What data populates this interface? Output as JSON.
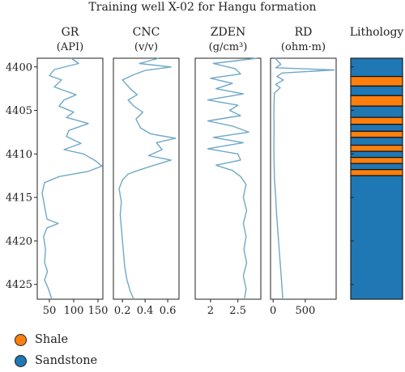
{
  "chart_data": {
    "type": "well-log",
    "title": "Training well X-02 for Hangu formation",
    "depth_axis": {
      "range": [
        4399.0,
        4426.7
      ],
      "ticks": [
        4400,
        4405,
        4410,
        4415,
        4420,
        4425
      ]
    },
    "tracks": [
      {
        "name": "GR",
        "unit": "(API)",
        "xlim": [
          25,
          160
        ],
        "ticks": [
          50,
          100,
          150
        ],
        "series": [
          {
            "depth": 4399.0,
            "value": 95
          },
          {
            "depth": 4399.6,
            "value": 110
          },
          {
            "depth": 4400.3,
            "value": 60
          },
          {
            "depth": 4401.0,
            "value": 50
          },
          {
            "depth": 4401.5,
            "value": 75
          },
          {
            "depth": 4402.3,
            "value": 60
          },
          {
            "depth": 4403.2,
            "value": 105
          },
          {
            "depth": 4403.8,
            "value": 80
          },
          {
            "depth": 4404.5,
            "value": 70
          },
          {
            "depth": 4405.2,
            "value": 100
          },
          {
            "depth": 4405.8,
            "value": 85
          },
          {
            "depth": 4406.5,
            "value": 130
          },
          {
            "depth": 4407.3,
            "value": 90
          },
          {
            "depth": 4408.0,
            "value": 85
          },
          {
            "depth": 4408.8,
            "value": 115
          },
          {
            "depth": 4409.5,
            "value": 80
          },
          {
            "depth": 4410.0,
            "value": 120
          },
          {
            "depth": 4410.8,
            "value": 145
          },
          {
            "depth": 4411.4,
            "value": 158
          },
          {
            "depth": 4412.0,
            "value": 130
          },
          {
            "depth": 4412.6,
            "value": 70
          },
          {
            "depth": 4413.3,
            "value": 40
          },
          {
            "depth": 4414.5,
            "value": 35
          },
          {
            "depth": 4416.0,
            "value": 40
          },
          {
            "depth": 4417.5,
            "value": 45
          },
          {
            "depth": 4418.0,
            "value": 68
          },
          {
            "depth": 4418.5,
            "value": 45
          },
          {
            "depth": 4419.5,
            "value": 38
          },
          {
            "depth": 4421.0,
            "value": 42
          },
          {
            "depth": 4422.5,
            "value": 40
          },
          {
            "depth": 4423.5,
            "value": 46
          },
          {
            "depth": 4424.5,
            "value": 40
          },
          {
            "depth": 4425.5,
            "value": 48
          },
          {
            "depth": 4426.7,
            "value": 55
          }
        ]
      },
      {
        "name": "CNC",
        "unit": "(v/v)",
        "xlim": [
          0.12,
          0.7
        ],
        "ticks": [
          0.2,
          0.4,
          0.6
        ],
        "series": [
          {
            "depth": 4399.0,
            "value": 0.52
          },
          {
            "depth": 4399.6,
            "value": 0.35
          },
          {
            "depth": 4400.0,
            "value": 0.63
          },
          {
            "depth": 4400.4,
            "value": 0.4
          },
          {
            "depth": 4400.9,
            "value": 0.3
          },
          {
            "depth": 4401.5,
            "value": 0.2
          },
          {
            "depth": 4402.5,
            "value": 0.27
          },
          {
            "depth": 4403.2,
            "value": 0.33
          },
          {
            "depth": 4403.8,
            "value": 0.25
          },
          {
            "depth": 4404.5,
            "value": 0.3
          },
          {
            "depth": 4405.2,
            "value": 0.38
          },
          {
            "depth": 4406.0,
            "value": 0.32
          },
          {
            "depth": 4407.0,
            "value": 0.36
          },
          {
            "depth": 4407.7,
            "value": 0.45
          },
          {
            "depth": 4408.2,
            "value": 0.67
          },
          {
            "depth": 4408.7,
            "value": 0.5
          },
          {
            "depth": 4409.5,
            "value": 0.55
          },
          {
            "depth": 4410.2,
            "value": 0.43
          },
          {
            "depth": 4410.7,
            "value": 0.63
          },
          {
            "depth": 4411.3,
            "value": 0.48
          },
          {
            "depth": 4411.8,
            "value": 0.36
          },
          {
            "depth": 4412.3,
            "value": 0.25
          },
          {
            "depth": 4413.0,
            "value": 0.2
          },
          {
            "depth": 4414.0,
            "value": 0.17
          },
          {
            "depth": 4415.5,
            "value": 0.19
          },
          {
            "depth": 4417.0,
            "value": 0.18
          },
          {
            "depth": 4418.5,
            "value": 0.19
          },
          {
            "depth": 4420.0,
            "value": 0.2
          },
          {
            "depth": 4421.5,
            "value": 0.21
          },
          {
            "depth": 4423.0,
            "value": 0.22
          },
          {
            "depth": 4424.5,
            "value": 0.24
          },
          {
            "depth": 4425.8,
            "value": 0.27
          },
          {
            "depth": 4426.7,
            "value": 0.3
          }
        ]
      },
      {
        "name": "ZDEN",
        "unit": "(g/cm³)",
        "xlim": [
          1.72,
          2.92
        ],
        "ticks": [
          2.0,
          2.5
        ],
        "series": [
          {
            "depth": 4399.0,
            "value": 2.85
          },
          {
            "depth": 4399.6,
            "value": 2.05
          },
          {
            "depth": 4400.2,
            "value": 2.45
          },
          {
            "depth": 4400.8,
            "value": 2.55
          },
          {
            "depth": 4401.3,
            "value": 2.0
          },
          {
            "depth": 4401.9,
            "value": 2.4
          },
          {
            "depth": 4402.5,
            "value": 2.1
          },
          {
            "depth": 4403.1,
            "value": 2.6
          },
          {
            "depth": 4403.8,
            "value": 1.95
          },
          {
            "depth": 4404.4,
            "value": 2.5
          },
          {
            "depth": 4405.0,
            "value": 2.35
          },
          {
            "depth": 4405.6,
            "value": 2.55
          },
          {
            "depth": 4406.2,
            "value": 1.95
          },
          {
            "depth": 4406.8,
            "value": 2.4
          },
          {
            "depth": 4407.5,
            "value": 2.7
          },
          {
            "depth": 4408.1,
            "value": 2.05
          },
          {
            "depth": 4408.7,
            "value": 2.6
          },
          {
            "depth": 4409.4,
            "value": 1.95
          },
          {
            "depth": 4410.0,
            "value": 2.5
          },
          {
            "depth": 4410.7,
            "value": 2.55
          },
          {
            "depth": 4411.3,
            "value": 2.1
          },
          {
            "depth": 4411.9,
            "value": 2.4
          },
          {
            "depth": 4412.6,
            "value": 2.55
          },
          {
            "depth": 4413.5,
            "value": 2.65
          },
          {
            "depth": 4415.0,
            "value": 2.6
          },
          {
            "depth": 4416.5,
            "value": 2.66
          },
          {
            "depth": 4418.0,
            "value": 2.6
          },
          {
            "depth": 4419.5,
            "value": 2.65
          },
          {
            "depth": 4421.0,
            "value": 2.61
          },
          {
            "depth": 4422.5,
            "value": 2.66
          },
          {
            "depth": 4424.0,
            "value": 2.6
          },
          {
            "depth": 4425.5,
            "value": 2.65
          },
          {
            "depth": 4426.7,
            "value": 2.62
          }
        ]
      },
      {
        "name": "RD",
        "unit": "(ohm·m)",
        "xlim": [
          -40,
          980
        ],
        "ticks": [
          0,
          500
        ],
        "series": [
          {
            "depth": 4399.0,
            "value": 30
          },
          {
            "depth": 4399.7,
            "value": 120
          },
          {
            "depth": 4400.1,
            "value": 40
          },
          {
            "depth": 4400.35,
            "value": 950
          },
          {
            "depth": 4400.7,
            "value": 140
          },
          {
            "depth": 4401.1,
            "value": 60
          },
          {
            "depth": 4401.5,
            "value": 160
          },
          {
            "depth": 4402.0,
            "value": 40
          },
          {
            "depth": 4402.4,
            "value": 110
          },
          {
            "depth": 4403.0,
            "value": 20
          },
          {
            "depth": 4404.0,
            "value": 15
          },
          {
            "depth": 4405.5,
            "value": 12
          },
          {
            "depth": 4407.0,
            "value": 15
          },
          {
            "depth": 4409.0,
            "value": 12
          },
          {
            "depth": 4411.0,
            "value": 15
          },
          {
            "depth": 4413.0,
            "value": 22
          },
          {
            "depth": 4415.0,
            "value": 40
          },
          {
            "depth": 4417.0,
            "value": 55
          },
          {
            "depth": 4419.0,
            "value": 75
          },
          {
            "depth": 4421.0,
            "value": 95
          },
          {
            "depth": 4423.0,
            "value": 115
          },
          {
            "depth": 4425.0,
            "value": 135
          },
          {
            "depth": 4426.7,
            "value": 150
          }
        ]
      }
    ],
    "lithology": {
      "title": "Lithology",
      "colors": {
        "Shale": "#ff7f0e",
        "Sandstone": "#1f77b4"
      },
      "intervals": [
        {
          "top": 4399.0,
          "base": 4401.1,
          "class": "Sandstone"
        },
        {
          "top": 4401.1,
          "base": 4402.2,
          "class": "Shale"
        },
        {
          "top": 4402.2,
          "base": 4403.3,
          "class": "Sandstone"
        },
        {
          "top": 4403.3,
          "base": 4404.5,
          "class": "Shale"
        },
        {
          "top": 4404.5,
          "base": 4405.8,
          "class": "Sandstone"
        },
        {
          "top": 4405.8,
          "base": 4406.6,
          "class": "Shale"
        },
        {
          "top": 4406.6,
          "base": 4407.4,
          "class": "Sandstone"
        },
        {
          "top": 4407.4,
          "base": 4408.1,
          "class": "Shale"
        },
        {
          "top": 4408.1,
          "base": 4409.0,
          "class": "Sandstone"
        },
        {
          "top": 4409.0,
          "base": 4409.7,
          "class": "Shale"
        },
        {
          "top": 4409.7,
          "base": 4410.4,
          "class": "Sandstone"
        },
        {
          "top": 4410.4,
          "base": 4411.1,
          "class": "Shale"
        },
        {
          "top": 4411.1,
          "base": 4411.8,
          "class": "Sandstone"
        },
        {
          "top": 4411.8,
          "base": 4412.5,
          "class": "Shale"
        },
        {
          "top": 4412.5,
          "base": 4426.7,
          "class": "Sandstone"
        }
      ]
    },
    "legend": [
      {
        "label": "Shale",
        "color": "#ff7f0e"
      },
      {
        "label": "Sandstone",
        "color": "#1f77b4"
      }
    ],
    "line_color": "#6fa8c8",
    "grid": false
  }
}
